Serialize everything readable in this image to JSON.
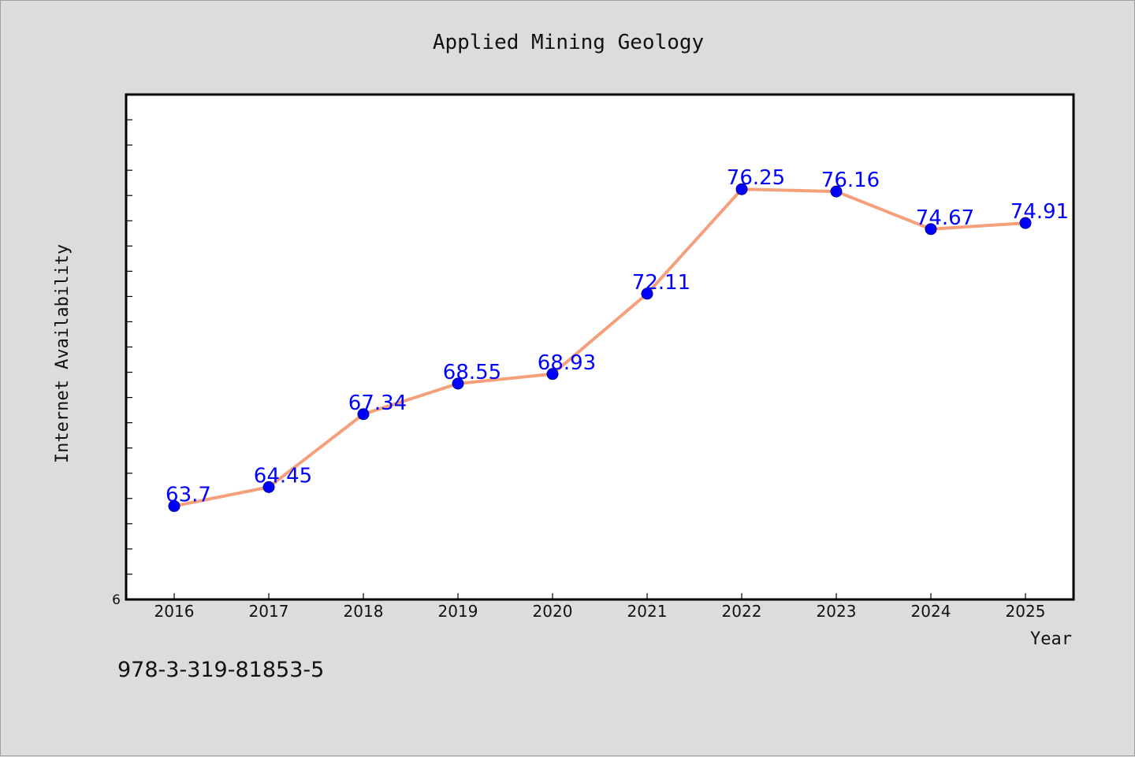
{
  "chart_data": {
    "type": "line",
    "title": "Applied Mining Geology",
    "xlabel": "Year",
    "ylabel": "Internet Availability",
    "categories": [
      "2016",
      "2017",
      "2018",
      "2019",
      "2020",
      "2021",
      "2022",
      "2023",
      "2024",
      "2025"
    ],
    "series": [
      {
        "values": [
          63.7,
          64.45,
          67.34,
          68.55,
          68.93,
          72.11,
          76.25,
          76.16,
          74.67,
          74.91
        ],
        "labels": [
          "63.7",
          "64.45",
          "67.34",
          "68.55",
          "68.93",
          "72.11",
          "76.25",
          "76.16",
          "74.67",
          "74.91"
        ],
        "line_color": "#f5a07a",
        "marker_color": "#0000ff",
        "label_color": "#0000ff"
      }
    ],
    "ylim": [
      60,
      80
    ],
    "y_tick_label": "6",
    "grid": false,
    "legend": "none"
  },
  "footer": {
    "isbn": "978-3-319-81853-5"
  },
  "colors": {
    "background": "#dcdcdc",
    "plot_area": "#ffffff",
    "axis": "#000000"
  }
}
